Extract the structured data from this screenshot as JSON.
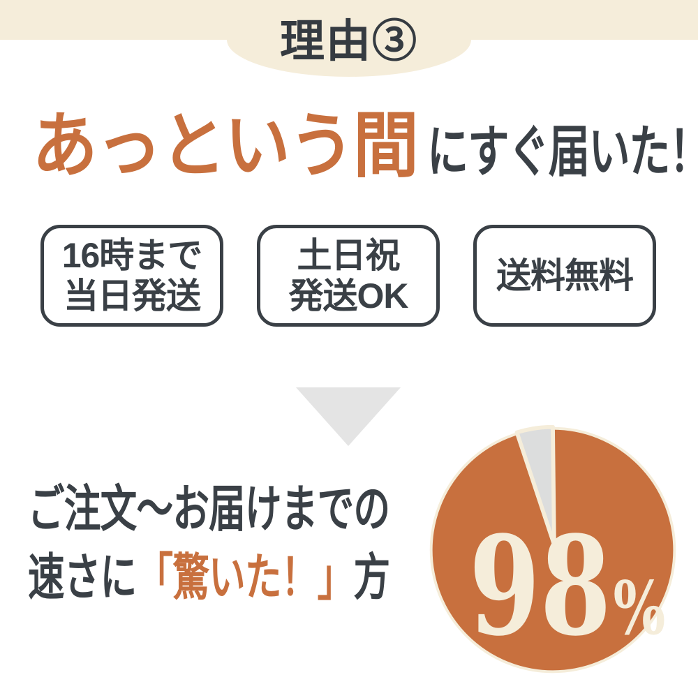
{
  "colors": {
    "cream": "#f5edda",
    "orange": "#c8703e",
    "dark_text": "#3a4046",
    "triangle_gray": "#e4e4e4",
    "wedge_gray": "#dcdddd"
  },
  "header": {
    "title": "理由③"
  },
  "headline": {
    "highlight": "あっという間",
    "rest": "にすぐ届いた！"
  },
  "badges": [
    {
      "lines": [
        "16時まで",
        "当日発送"
      ]
    },
    {
      "lines": [
        "土日祝",
        "発送OK"
      ]
    },
    {
      "lines": [
        "送料無料"
      ]
    }
  ],
  "arrow": {
    "icon": "down-triangle"
  },
  "stat": {
    "caption_line1": "ご注文〜お届けまでの",
    "caption_line2_prefix": "速さに",
    "caption_line2_highlight": "「驚いた！」",
    "caption_line2_suffix": "方",
    "value": "98",
    "unit": "%"
  },
  "chart_data": {
    "type": "pie",
    "title": "ご注文〜お届けまでの速さに「驚いた！」方",
    "segments": [
      {
        "label": "驚いた！",
        "value": 98,
        "color": "#c8703e"
      },
      {
        "label": "",
        "value": 2,
        "color": "#dcdddd"
      }
    ],
    "annotation": "98%",
    "gap_degrees": 17,
    "legend": false,
    "start_angle_deg": 0,
    "direction": "counterclockwise"
  }
}
